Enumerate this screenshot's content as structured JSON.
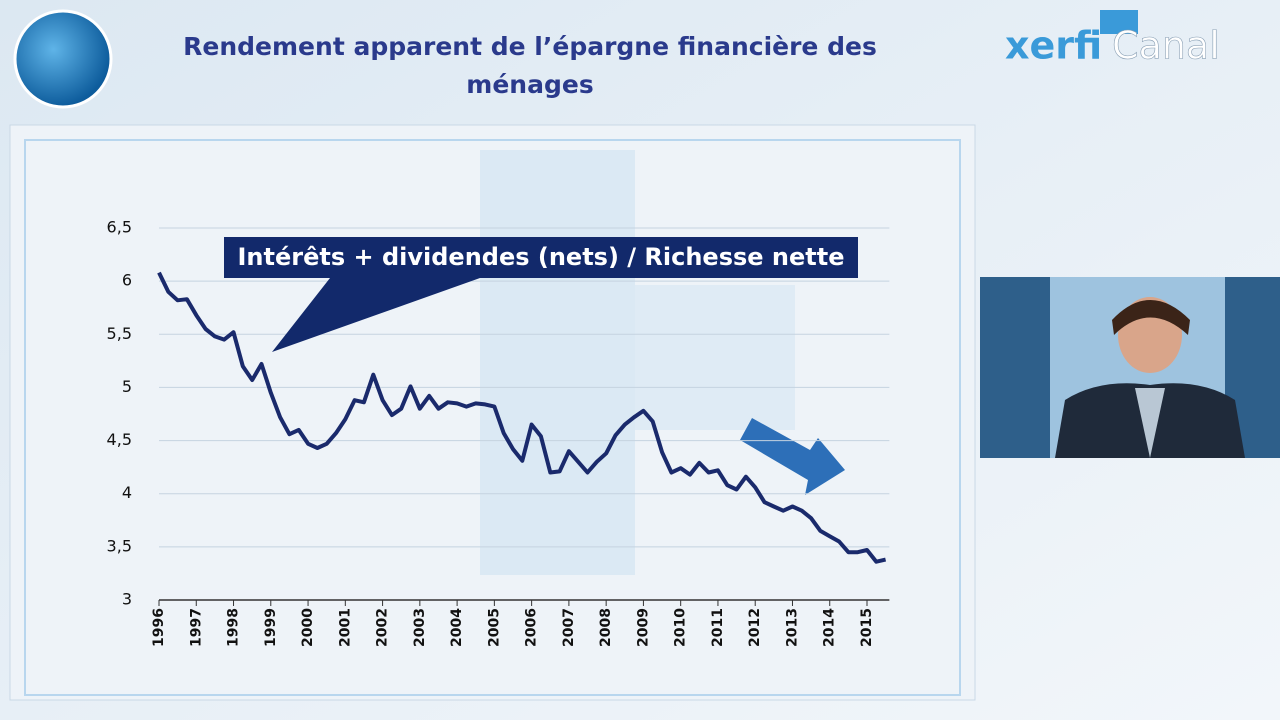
{
  "branding": {
    "logo_left": "xerfi",
    "logo_right": "Canal"
  },
  "chart_data": {
    "type": "line",
    "title": "Rendement apparent de l’épargne financière des ménages",
    "annotation": "Intérêts + dividendes (nets) / Richesse nette",
    "color": "#1a2a6c",
    "x": [
      1996,
      1996.25,
      1996.5,
      1996.75,
      1997,
      1997.25,
      1997.5,
      1997.75,
      1998,
      1998.25,
      1998.5,
      1998.75,
      1999,
      1999.25,
      1999.5,
      1999.75,
      2000,
      2000.25,
      2000.5,
      2000.75,
      2001,
      2001.25,
      2001.5,
      2001.75,
      2002,
      2002.25,
      2002.5,
      2002.75,
      2003,
      2003.25,
      2003.5,
      2003.75,
      2004,
      2004.25,
      2004.5,
      2004.75,
      2005,
      2005.25,
      2005.5,
      2005.75,
      2006,
      2006.25,
      2006.5,
      2006.75,
      2007,
      2007.25,
      2007.5,
      2007.75,
      2008,
      2008.25,
      2008.5,
      2008.75,
      2009,
      2009.25,
      2009.5,
      2009.75,
      2010,
      2010.25,
      2010.5,
      2010.75,
      2011,
      2011.25,
      2011.5,
      2011.75,
      2012,
      2012.25,
      2012.5,
      2012.75,
      2013,
      2013.25,
      2013.5,
      2013.75,
      2014,
      2014.25,
      2014.5,
      2014.75,
      2015,
      2015.25,
      2015.5
    ],
    "values": [
      6.08,
      5.9,
      5.82,
      5.83,
      5.68,
      5.55,
      5.48,
      5.45,
      5.52,
      5.2,
      5.07,
      5.22,
      4.95,
      4.72,
      4.56,
      4.6,
      4.47,
      4.43,
      4.47,
      4.57,
      4.7,
      4.88,
      4.86,
      5.12,
      4.88,
      4.74,
      4.8,
      5.01,
      4.8,
      4.92,
      4.8,
      4.86,
      4.85,
      4.82,
      4.85,
      4.84,
      4.82,
      4.57,
      4.42,
      4.31,
      4.65,
      4.54,
      4.2,
      4.21,
      4.4,
      4.3,
      4.2,
      4.3,
      4.38,
      4.55,
      4.65,
      4.72,
      4.78,
      4.68,
      4.39,
      4.2,
      4.24,
      4.18,
      4.29,
      4.2,
      4.22,
      4.08,
      4.04,
      4.16,
      4.06,
      3.92,
      3.88,
      3.84,
      3.88,
      3.84,
      3.77,
      3.65,
      3.6,
      3.55,
      3.45,
      3.45,
      3.47,
      3.36,
      3.38
    ],
    "xlim": [
      1996,
      2015.6
    ],
    "xticks": [
      1996,
      1997,
      1998,
      1999,
      2000,
      2001,
      2002,
      2003,
      2004,
      2005,
      2006,
      2007,
      2008,
      2009,
      2010,
      2011,
      2012,
      2013,
      2014,
      2015
    ],
    "ylim": [
      3,
      6.5
    ],
    "yticks": [
      3,
      {
        "value": 3.5,
        "label": "3,5"
      },
      4,
      {
        "value": 4.5,
        "label": "4,5"
      },
      5,
      {
        "value": 5.5,
        "label": "5,5"
      },
      6,
      {
        "value": 6.5,
        "label": "6,5"
      }
    ],
    "grid": true
  }
}
